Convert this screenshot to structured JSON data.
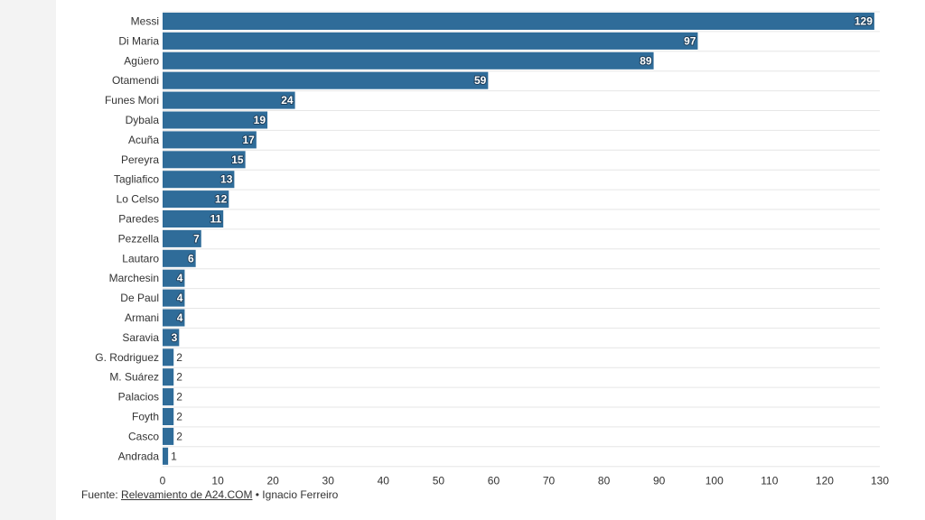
{
  "chart_data": {
    "type": "bar",
    "orientation": "horizontal",
    "categories": [
      "Messi",
      "Di Maria",
      "Agüero",
      "Otamendi",
      "Funes Mori",
      "Dybala",
      "Acuña",
      "Pereyra",
      "Tagliafico",
      "Lo Celso",
      "Paredes",
      "Pezzella",
      "Lautaro",
      "Marchesin",
      "De Paul",
      "Armani",
      "Saravia",
      "G. Rodriguez",
      "M. Suárez",
      "Palacios",
      "Foyth",
      "Casco",
      "Andrada"
    ],
    "values": [
      129,
      97,
      89,
      59,
      24,
      19,
      17,
      15,
      13,
      12,
      11,
      7,
      6,
      4,
      4,
      4,
      3,
      2,
      2,
      2,
      2,
      2,
      1
    ],
    "xlim": [
      0,
      130
    ],
    "xticks": [
      0,
      10,
      20,
      30,
      40,
      50,
      60,
      70,
      80,
      90,
      100,
      110,
      120,
      130
    ],
    "grid": true,
    "bar_color": "#2f6c99",
    "grid_color": "#e6e6e6"
  },
  "source": {
    "prefix": "Fuente: ",
    "link_text": "Relevamiento de A24.COM",
    "suffix": " • Ignacio Ferreiro"
  }
}
